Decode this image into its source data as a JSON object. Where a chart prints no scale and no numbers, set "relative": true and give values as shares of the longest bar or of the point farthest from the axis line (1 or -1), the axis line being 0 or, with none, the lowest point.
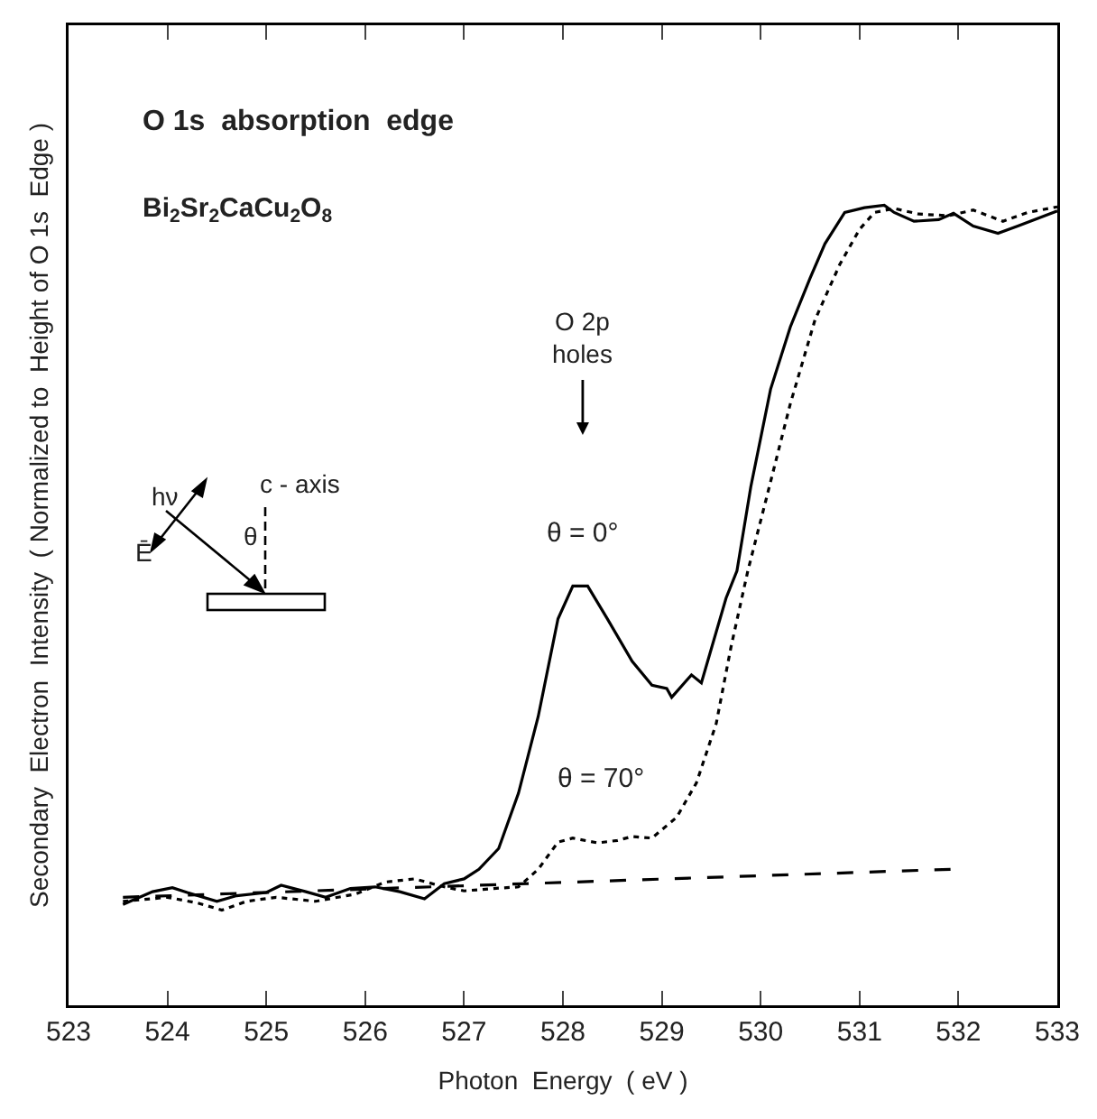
{
  "chart_data": {
    "type": "line",
    "relative": true,
    "title": "O 1s  absorption  edge",
    "subtitle": "Bi$_{2}$Sr$_{2}$CaCu$_{2}$O$_{8}$",
    "xlabel": "Photon  Energy  ( eV )",
    "ylabel": "Secondary  Electron  Intensity  ( Normalized to  Height of O 1s  Edge )",
    "xlim": [
      523,
      533
    ],
    "xticks": [
      523,
      524,
      525,
      526,
      527,
      528,
      529,
      530,
      531,
      532,
      533
    ],
    "tick_labels": "x",
    "grid": false,
    "marker": "none",
    "series": [
      {
        "color": "#000000",
        "line_style": "solid",
        "x": [
          523.55,
          523.85,
          524.05,
          524.2,
          524.5,
          524.7,
          525.0,
          525.15,
          525.4,
          525.6,
          525.85,
          526.1,
          526.35,
          526.6,
          526.8,
          527.0,
          527.15,
          527.35,
          527.55,
          527.75,
          527.95,
          528.1,
          528.25,
          528.45,
          528.7,
          528.9,
          529.05,
          529.1,
          529.3,
          529.4,
          529.65,
          529.76,
          529.9,
          530.1,
          530.3,
          530.5,
          530.65,
          530.85,
          531.05,
          531.25,
          531.35,
          531.55,
          531.8,
          531.95,
          532.15,
          532.4,
          532.6,
          533.0
        ],
        "values": [
          0.126,
          0.142,
          0.147,
          0.141,
          0.13,
          0.137,
          0.141,
          0.15,
          0.142,
          0.135,
          0.146,
          0.148,
          0.142,
          0.133,
          0.152,
          0.158,
          0.17,
          0.196,
          0.265,
          0.361,
          0.483,
          0.524,
          0.524,
          0.483,
          0.43,
          0.4,
          0.396,
          0.385,
          0.413,
          0.403,
          0.509,
          0.543,
          0.648,
          0.77,
          0.848,
          0.909,
          0.952,
          0.991,
          0.997,
          1.0,
          0.991,
          0.98,
          0.982,
          0.99,
          0.974,
          0.965,
          0.974,
          0.993
        ]
      },
      {
        "color": "#000000",
        "line_style": "dotted",
        "x": [
          523.55,
          524.0,
          524.3,
          524.55,
          524.8,
          525.1,
          525.5,
          525.9,
          526.2,
          526.5,
          526.8,
          527.0,
          527.3,
          527.55,
          527.75,
          527.95,
          528.1,
          528.35,
          528.55,
          528.7,
          528.9,
          529.15,
          529.35,
          529.55,
          529.7,
          529.87,
          530.05,
          530.3,
          530.55,
          530.8,
          531.0,
          531.15,
          531.35,
          531.6,
          531.9,
          532.15,
          532.45,
          532.7,
          533.0
        ],
        "values": [
          0.13,
          0.135,
          0.128,
          0.119,
          0.13,
          0.135,
          0.13,
          0.139,
          0.154,
          0.158,
          0.148,
          0.143,
          0.146,
          0.148,
          0.17,
          0.204,
          0.209,
          0.203,
          0.206,
          0.211,
          0.209,
          0.235,
          0.278,
          0.352,
          0.448,
          0.543,
          0.63,
          0.752,
          0.857,
          0.926,
          0.97,
          0.991,
          0.996,
          0.989,
          0.987,
          0.994,
          0.98,
          0.991,
          0.998
        ]
      },
      {
        "color": "#000000",
        "line_style": "dashed",
        "x": [
          523.55,
          531.92
        ],
        "values": [
          0.135,
          0.17
        ]
      }
    ],
    "annotations": [
      "O 2p\nholes",
      "θ = 0°",
      "θ = 70°",
      "hν",
      "Ē",
      "θ",
      "c - axis"
    ]
  }
}
